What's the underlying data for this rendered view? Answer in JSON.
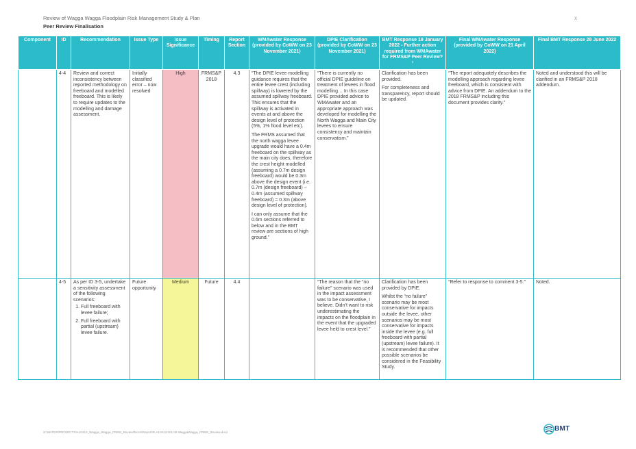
{
  "header": {
    "doc_title": "Review of Wagga Wagga Floodplain Risk Management Study & Plan",
    "section_title": "Peer Review Finalisation",
    "close_glyph": "x"
  },
  "table": {
    "columns": [
      "Component",
      "ID",
      "Recommendation",
      "Issue Type",
      "Issue Significance",
      "Timing",
      "Report Section",
      "WMAwater Response (provided by CoWW on 23 November 2021)",
      "DPIE Clarification (provided by CoWW on 23 November 2021)",
      "BMT Response 19 January 2022 - Further action required from WMAwater for FRMS&P Peer Review?¹",
      "Final WMAwater Response (provided by CoWW on 21 April 2022)",
      "Final BMT Response 29 June 2022"
    ],
    "rows": [
      {
        "component": "",
        "id": "4-4",
        "recommendation": "Review and correct inconsistency between reported methodology on freeboard and modelled freeboard. This is likely to require updates to the modelling and damage assessment.",
        "issue_type": "Initially classified error – now resolved",
        "significance": "High",
        "timing": "FRMS&P 2018",
        "report_section": "4.3",
        "wma_response": [
          "“The DPIE levee modelling guidance requires that the entire levee crest (including spillway) is lowered by the assumed spillway freeboard. This ensures that the spillway is activated in events at and above the design level of protection (5%, 1% flood level etc).",
          "The FRMS assumed that the north wagga levee upgrade would have a 0.4m freeboard on the spillway as the main city does, therefore the crest height modelled (assuming a 0.7m design freeboard) would be 0.3m above the design event (i.e. 0.7m (design freeboard) – 0.4m (assumed spillway freeboard) = 0.3m (above design level of protection).",
          "I can only assume that the 0.6m sections referred to below and in the BMT review are sections of high ground.”"
        ],
        "dpie_clarification": [
          "“There is currently no official DPIE guideline on treatment of levees in flood modelling… In this case DPIE provided advice to WMAwater and an appropriate approach was developed for modelling the North Wagga and Main City levees to ensure consistency and maintain conservatism.”"
        ],
        "bmt_response": [
          "Clarification has been provided.",
          "For completeness and transparency, report should be updated."
        ],
        "final_wma": [
          "“The report adequately describes the modelling approach regarding levee freeboard, which is consistent with advice from DPIE. An addendum to the 2018 FRMS&P including this document provides clarity.”"
        ],
        "final_bmt": [
          "Noted and understood this will be clarified in an FRMS&P 2018 addendum."
        ]
      },
      {
        "component": "",
        "id": "4-5",
        "recommendation_intro": "As per ID 3-5, undertake a sensitivity assessment of the following scenarios:",
        "recommendation_items": [
          "Full freeboard with levee failure;",
          "Full freeboard with partial (upstream) levee failure."
        ],
        "issue_type": "Future opportunity",
        "significance": "Medium",
        "timing": "Future",
        "report_section": "4.4",
        "wma_response": [
          ""
        ],
        "dpie_clarification": [
          "“The reason that the “no failure” scenario was used in the impact assessment was to be conservative, I believe. Didn’t want to risk underestimating the impacts on the floodplain in the event that the upgraded levee held to crest level.”"
        ],
        "bmt_response": [
          "Clarification has been provided by DPIE.",
          "Whilst the “no failure” scenario may be most conservative for impacts outside the levee, other scenarios may be most conservative for impacts inside the levee (e.g. full freeboard with partial (upstream) levee failure). It is recommended that other possible scenarios be considered in the Feasibility Study."
        ],
        "final_wma": [
          "“Refer to response to comment 3-5.”"
        ],
        "final_bmt": [
          "Noted."
        ]
      }
    ]
  },
  "footer": {
    "file_path": "S:\\WATER\\PROJECTS\\A10413_Wagga_Wagga_FRMS_Review\\Docs\\Report\\R.A10413.001.05.WaggaWagga_FRMS_Review.docx",
    "logo_text": "BMT"
  },
  "colors": {
    "header_teal": "#2cbcc9",
    "high": "#f5bec4",
    "medium": "#f5f59a",
    "logo_blue": "#1d3f7a"
  }
}
